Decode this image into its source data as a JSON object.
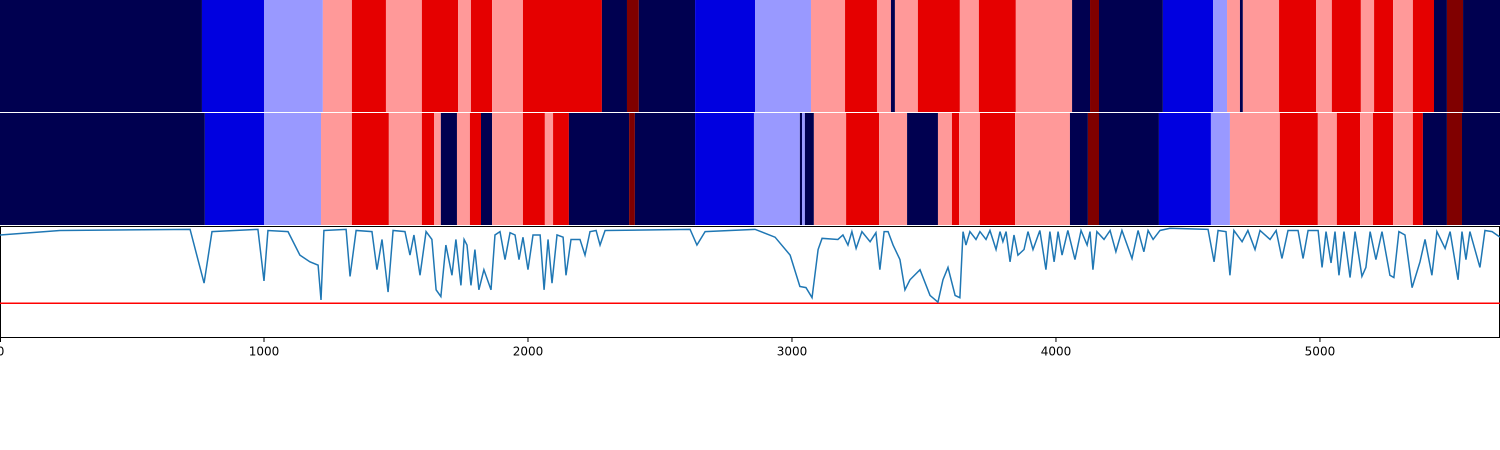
{
  "chart_data": [
    {
      "type": "segments",
      "xlim": [
        0,
        5682
      ],
      "bins": [
        0,
        765,
        1000,
        1223,
        1333,
        1462,
        1598,
        1735,
        1784,
        1864,
        1981,
        2280,
        2375,
        2420,
        2633,
        2860,
        3072,
        3201,
        3322,
        3375,
        3390,
        3477,
        3636,
        3708,
        3848,
        4061,
        4129,
        4163,
        4405,
        4595,
        4648,
        4697,
        4708,
        4845,
        4985,
        5045,
        5155,
        5205,
        5277,
        5352,
        5432,
        5481,
        5542,
        5682
      ],
      "colors": [
        "#000050",
        "#0000e0",
        "#9999ff",
        "#ff9999",
        "#e50000",
        "#ff9999",
        "#e50000",
        "#ff9999",
        "#e50000",
        "#ff9999",
        "#e50000",
        "#000050",
        "#800000",
        "#000050",
        "#0000e0",
        "#9999ff",
        "#ff9999",
        "#e50000",
        "#ff9999",
        "#000050",
        "#ff9999",
        "#e50000",
        "#ff9999",
        "#e50000",
        "#ff9999",
        "#000050",
        "#800000",
        "#000050",
        "#0000e0",
        "#9999ff",
        "#ff9999",
        "#000050",
        "#ff9999",
        "#e50000",
        "#ff9999",
        "#e50000",
        "#ff9999",
        "#e50000",
        "#ff9999",
        "#e50000",
        "#000050",
        "#800000",
        "#000050"
      ]
    },
    {
      "type": "segments",
      "xlim": [
        0,
        5682
      ],
      "bins": [
        0,
        776,
        1000,
        1216,
        1333,
        1473,
        1598,
        1644,
        1670,
        1731,
        1780,
        1822,
        1864,
        1981,
        2064,
        2095,
        2155,
        2383,
        2405,
        2633,
        2856,
        3030,
        3038,
        3049,
        3083,
        3205,
        3330,
        3436,
        3553,
        3606,
        3633,
        3712,
        3845,
        4053,
        4121,
        4163,
        4390,
        4587,
        4659,
        4848,
        4992,
        5064,
        5152,
        5201,
        5277,
        5352,
        5390,
        5481,
        5538,
        5682
      ],
      "colors": [
        "#000050",
        "#0000e0",
        "#9999ff",
        "#ff9999",
        "#e50000",
        "#ff9999",
        "#e50000",
        "#ff9999",
        "#000050",
        "#ff9999",
        "#e50000",
        "#000050",
        "#ff9999",
        "#e50000",
        "#ff9999",
        "#e50000",
        "#000050",
        "#800000",
        "#000050",
        "#0000e0",
        "#9999ff",
        "#000050",
        "#9999ff",
        "#000050",
        "#ff9999",
        "#e50000",
        "#ff9999",
        "#000050",
        "#ff9999",
        "#e50000",
        "#ff9999",
        "#e50000",
        "#ff9999",
        "#000050",
        "#800000",
        "#000050",
        "#0000e0",
        "#9999ff",
        "#ff9999",
        "#e50000",
        "#ff9999",
        "#e50000",
        "#ff9999",
        "#e50000",
        "#ff9999",
        "#e50000",
        "#000050",
        "#800000",
        "#000050"
      ]
    },
    {
      "type": "line",
      "xlim": [
        0,
        5682
      ],
      "ylim": [
        0,
        1
      ],
      "xticks": [
        0,
        1000,
        2000,
        3000,
        4000,
        5000
      ],
      "color": "#1f77b4",
      "threshold": {
        "value": 0.31,
        "color": "#ff0000"
      },
      "x": [
        0,
        227,
        720,
        773,
        803,
        977,
        1000,
        1015,
        1091,
        1136,
        1174,
        1205,
        1216,
        1227,
        1311,
        1326,
        1349,
        1409,
        1428,
        1447,
        1470,
        1489,
        1534,
        1553,
        1568,
        1591,
        1614,
        1636,
        1652,
        1670,
        1689,
        1712,
        1727,
        1746,
        1758,
        1769,
        1784,
        1799,
        1814,
        1833,
        1860,
        1875,
        1894,
        1913,
        1932,
        1951,
        1966,
        1981,
        2000,
        2019,
        2046,
        2061,
        2076,
        2091,
        2110,
        2133,
        2144,
        2163,
        2197,
        2216,
        2235,
        2258,
        2273,
        2292,
        2614,
        2640,
        2671,
        2860,
        2936,
        2993,
        3030,
        3053,
        3076,
        3099,
        3114,
        3174,
        3193,
        3212,
        3227,
        3243,
        3265,
        3296,
        3318,
        3333,
        3349,
        3364,
        3383,
        3409,
        3428,
        3447,
        3485,
        3523,
        3553,
        3572,
        3591,
        3618,
        3636,
        3648,
        3659,
        3674,
        3697,
        3712,
        3735,
        3750,
        3773,
        3788,
        3799,
        3811,
        3826,
        3841,
        3856,
        3879,
        3894,
        3913,
        3939,
        3962,
        3977,
        3993,
        4008,
        4023,
        4045,
        4072,
        4095,
        4118,
        4129,
        4140,
        4155,
        4182,
        4205,
        4227,
        4250,
        4288,
        4311,
        4333,
        4349,
        4368,
        4394,
        4432,
        4576,
        4599,
        4614,
        4644,
        4659,
        4674,
        4705,
        4727,
        4754,
        4773,
        4811,
        4834,
        4856,
        4879,
        4917,
        4936,
        4955,
        4993,
        5008,
        5023,
        5042,
        5057,
        5072,
        5091,
        5114,
        5133,
        5159,
        5174,
        5190,
        5212,
        5235,
        5265,
        5280,
        5299,
        5322,
        5349,
        5379,
        5398,
        5424,
        5443,
        5474,
        5493,
        5523,
        5538,
        5553,
        5568,
        5606,
        5625,
        5652,
        5682
      ],
      "values": [
        0.92,
        0.96,
        0.97,
        0.49,
        0.95,
        0.97,
        0.51,
        0.96,
        0.95,
        0.74,
        0.68,
        0.65,
        0.34,
        0.96,
        0.97,
        0.55,
        0.96,
        0.95,
        0.61,
        0.88,
        0.41,
        0.96,
        0.95,
        0.74,
        0.92,
        0.56,
        0.95,
        0.88,
        0.43,
        0.37,
        0.83,
        0.56,
        0.88,
        0.47,
        0.88,
        0.83,
        0.47,
        0.79,
        0.43,
        0.61,
        0.43,
        0.92,
        0.95,
        0.7,
        0.94,
        0.92,
        0.7,
        0.9,
        0.61,
        0.92,
        0.92,
        0.43,
        0.88,
        0.49,
        0.92,
        0.9,
        0.56,
        0.88,
        0.88,
        0.74,
        0.95,
        0.96,
        0.83,
        0.96,
        0.97,
        0.83,
        0.95,
        0.97,
        0.9,
        0.74,
        0.46,
        0.45,
        0.36,
        0.79,
        0.89,
        0.88,
        0.92,
        0.83,
        0.95,
        0.8,
        0.95,
        0.86,
        0.94,
        0.61,
        0.95,
        0.95,
        0.83,
        0.7,
        0.43,
        0.52,
        0.61,
        0.38,
        0.32,
        0.52,
        0.63,
        0.38,
        0.36,
        0.95,
        0.83,
        0.95,
        0.88,
        0.95,
        0.88,
        0.96,
        0.79,
        0.95,
        0.86,
        0.95,
        0.68,
        0.92,
        0.74,
        0.79,
        0.95,
        0.79,
        0.96,
        0.61,
        0.95,
        0.68,
        0.95,
        0.74,
        0.96,
        0.7,
        0.96,
        0.83,
        0.95,
        0.61,
        0.95,
        0.88,
        0.96,
        0.77,
        0.96,
        0.71,
        0.96,
        0.77,
        0.96,
        0.88,
        0.96,
        0.98,
        0.97,
        0.68,
        0.96,
        0.95,
        0.56,
        0.96,
        0.86,
        0.96,
        0.79,
        0.96,
        0.88,
        0.96,
        0.71,
        0.96,
        0.96,
        0.71,
        0.96,
        0.96,
        0.63,
        0.95,
        0.67,
        0.95,
        0.56,
        0.95,
        0.54,
        0.95,
        0.55,
        0.63,
        0.95,
        0.7,
        0.95,
        0.56,
        0.54,
        0.95,
        0.92,
        0.45,
        0.68,
        0.88,
        0.56,
        0.95,
        0.8,
        0.95,
        0.52,
        0.95,
        0.7,
        0.95,
        0.63,
        0.96,
        0.95,
        0.9
      ]
    }
  ]
}
